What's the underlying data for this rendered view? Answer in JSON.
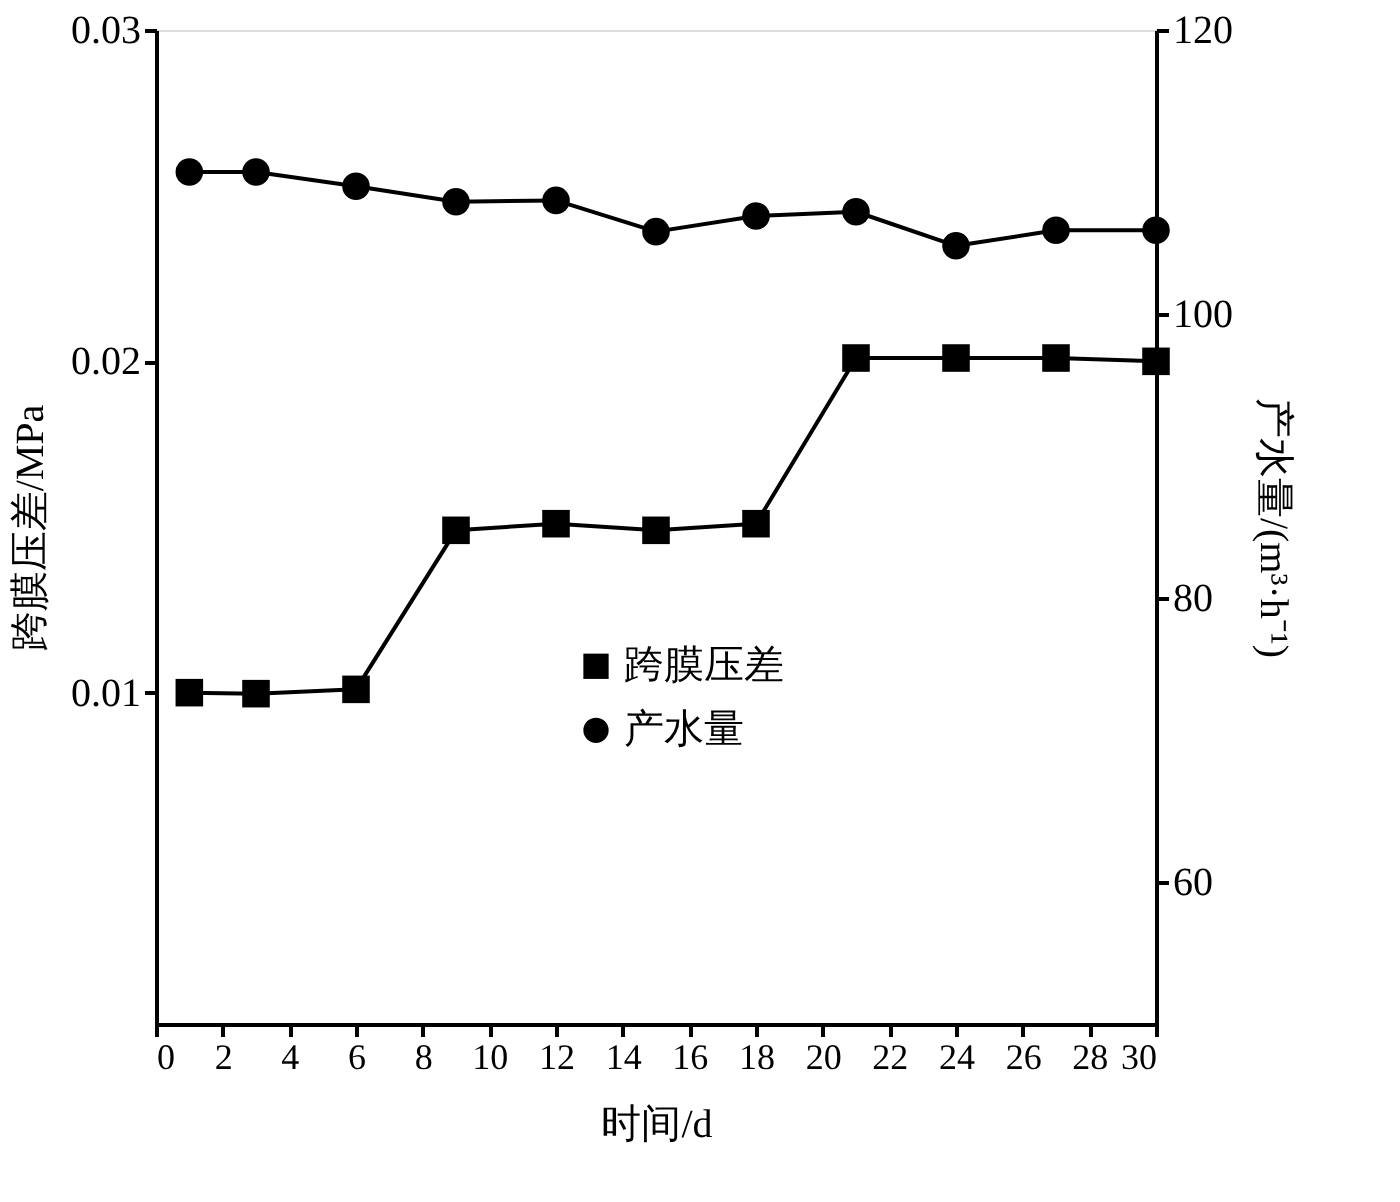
{
  "chart_data": {
    "type": "line",
    "xlabel": "时间/d",
    "ylabel": "跨膜压差/MPa",
    "y2label": "产水量/(m³·h⁻¹)",
    "xlim": [
      0,
      30
    ],
    "xticks": [
      0,
      2,
      4,
      6,
      8,
      10,
      12,
      14,
      16,
      18,
      20,
      22,
      24,
      26,
      28,
      30
    ],
    "ylim": [
      0,
      0.03
    ],
    "yticks": [
      0.01,
      0.02,
      0.03
    ],
    "y2lim": [
      50,
      120
    ],
    "y2ticks": [
      60,
      80,
      100,
      120
    ],
    "grid": false,
    "legend": "center",
    "line_style": "solid",
    "series": [
      {
        "name": "跨膜压差",
        "color": "#000000",
        "marker": "square",
        "x": [
          1,
          3,
          6,
          9,
          12,
          15,
          18,
          21,
          24,
          27,
          30
        ],
        "values": [
          0.01,
          0.00997,
          0.0101,
          0.0149,
          0.0151,
          0.0149,
          0.0151,
          0.0201,
          0.0201,
          0.0201,
          0.02
        ]
      },
      {
        "name": "产水量",
        "color": "#000000",
        "marker": "circle",
        "axis": "y2",
        "x": [
          1,
          3,
          6,
          9,
          12,
          15,
          18,
          21,
          24,
          27,
          30
        ],
        "values": [
          110.0,
          110.0,
          109.0,
          107.9,
          108.0,
          105.8,
          106.9,
          107.2,
          104.8,
          105.9,
          105.9
        ]
      }
    ]
  }
}
